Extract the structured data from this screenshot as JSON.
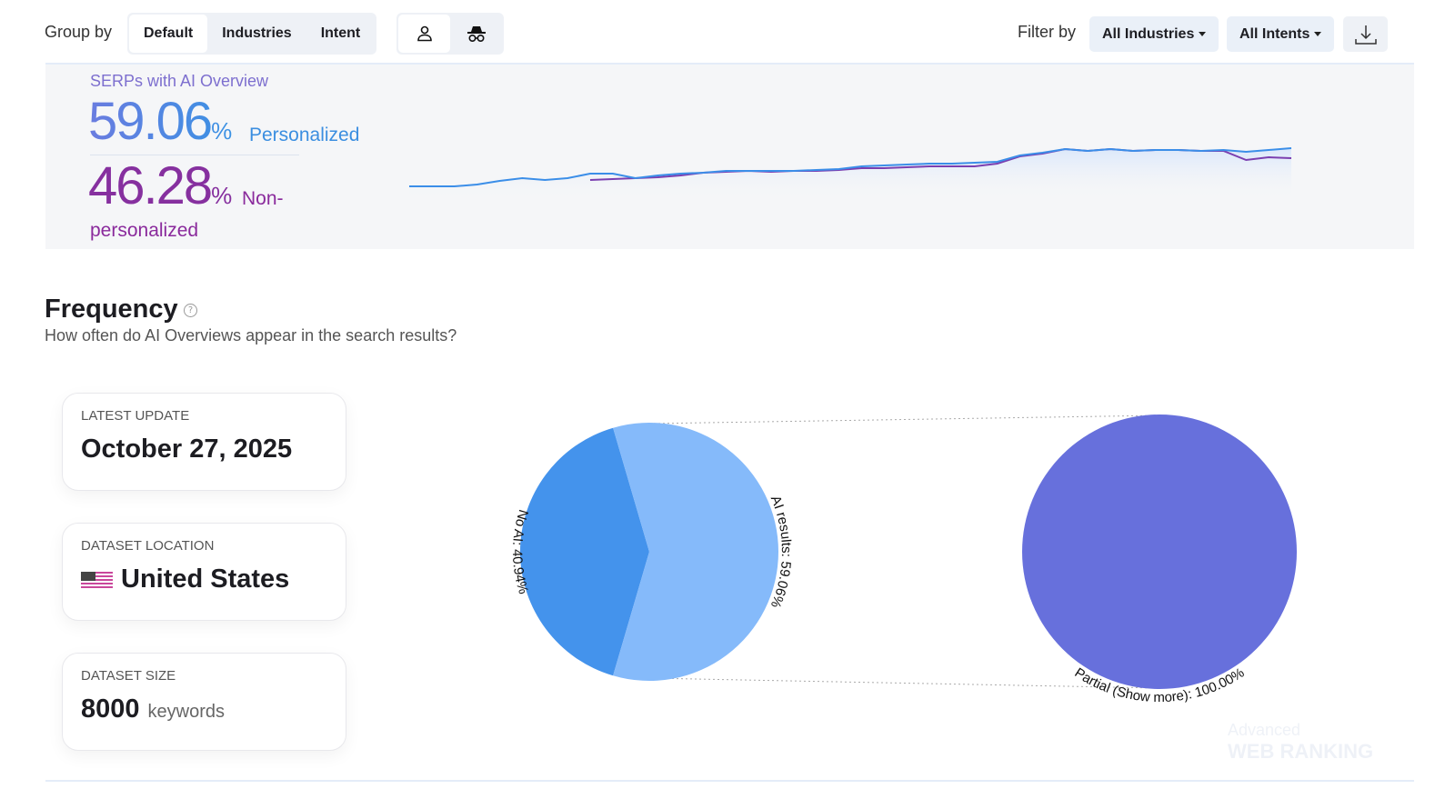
{
  "toolbar": {
    "group_by_label": "Group by",
    "group_options": [
      "Default",
      "Industries",
      "Intent"
    ],
    "active_group": "Default",
    "view_icons": [
      "person-icon",
      "incognito-icon"
    ],
    "filter_by_label": "Filter by",
    "industries_filter": "All Industries",
    "intents_filter": "All Intents",
    "download_icon": "download-icon"
  },
  "summary": {
    "title": "SERPs with AI Overview",
    "personalized_value": "59.06",
    "personalized_pct": "%",
    "personalized_label": "Personalized",
    "nonpersonalized_value": "46.28",
    "nonpersonalized_pct": "%",
    "nonpersonalized_label_1": "Non-",
    "nonpersonalized_label_2": "personalized",
    "colors": {
      "personalized": "#3b8ee8",
      "nonpersonalized": "#7b3fb0"
    },
    "sparkline": {
      "personalized": [
        25,
        25,
        25,
        27,
        31,
        34,
        32,
        34,
        39,
        39,
        34,
        37,
        39,
        40,
        42,
        42,
        42,
        42,
        43,
        44,
        47,
        48,
        49,
        50,
        50,
        51,
        52,
        59,
        62,
        66,
        64,
        66,
        64,
        65,
        65,
        64,
        65,
        63,
        65,
        67
      ],
      "nonpersonalized": [
        null,
        null,
        null,
        null,
        null,
        null,
        null,
        null,
        32,
        33,
        34,
        35,
        37,
        40,
        41,
        42,
        41,
        42,
        42,
        43,
        45,
        45,
        46,
        47,
        47,
        47,
        50,
        58,
        61,
        66,
        64,
        66,
        64,
        65,
        65,
        64,
        64,
        54,
        57,
        56
      ]
    }
  },
  "frequency": {
    "title": "Frequency",
    "subtitle": "How often do AI Overviews appear in the search results?",
    "cards": [
      {
        "label": "LATEST UPDATE",
        "value": "October 27, 2025"
      },
      {
        "label": "DATASET LOCATION",
        "value": "United States",
        "icon": "us-flag-icon"
      },
      {
        "label": "DATASET SIZE",
        "value": "8000",
        "unit": "keywords"
      }
    ]
  },
  "chart_data": {
    "type": "pie",
    "pies": [
      {
        "slices": [
          {
            "label": "No AI: 40.94%",
            "value": 40.94,
            "color": "#4493ec"
          },
          {
            "label": "AI results: 59.06%",
            "value": 59.06,
            "color": "#85bafa"
          }
        ]
      },
      {
        "slices": [
          {
            "label": "Partial (Show more): 100.00%",
            "value": 100.0,
            "color": "#6770dc"
          }
        ]
      }
    ]
  },
  "watermark": {
    "line1": "Advanced",
    "line2": "WEB RANKING"
  }
}
